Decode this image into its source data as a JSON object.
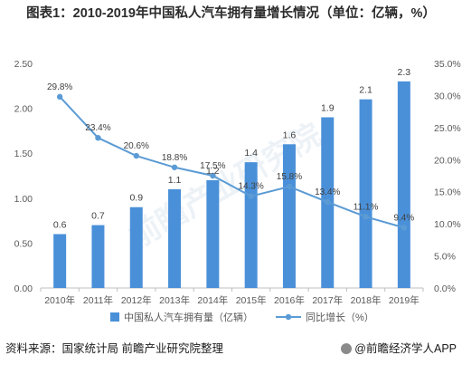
{
  "page": {
    "title": "图表1：2010-2019年中国私人汽车拥有量增长情况（单位：亿辆，%）",
    "source": "资料来源：国家统计局 前瞻产业研究院整理",
    "credit": "@前瞻经济学人APP",
    "watermark": "前瞻产业研究院"
  },
  "chart_data": {
    "type": "bar",
    "categories": [
      "2010年",
      "2011年",
      "2012年",
      "2013年",
      "2014年",
      "2015年",
      "2016年",
      "2017年",
      "2018年",
      "2019年"
    ],
    "series": [
      {
        "name": "中国私人汽车拥有量（亿辆）",
        "type": "bar",
        "axis": "left",
        "color": "#4a90d9",
        "values": [
          0.6,
          0.7,
          0.9,
          1.1,
          1.2,
          1.4,
          1.6,
          1.9,
          2.1,
          2.3
        ],
        "value_labels": [
          "0.6",
          "0.7",
          "0.9",
          "1.1",
          "1.2",
          "1.4",
          "1.6",
          "1.9",
          "2.1",
          "2.3"
        ]
      },
      {
        "name": "同比增长（%）",
        "type": "line",
        "axis": "right",
        "color": "#5b9bd5",
        "values": [
          29.8,
          23.4,
          20.6,
          18.8,
          17.5,
          14.3,
          15.8,
          13.4,
          11.1,
          9.4
        ],
        "value_labels": [
          "29.8%",
          "23.4%",
          "20.6%",
          "18.8%",
          "17.5%",
          "14.3%",
          "15.8%",
          "13.4%",
          "11.1%",
          "9.4%"
        ]
      }
    ],
    "left_axis": {
      "ylim": [
        0,
        2.5
      ],
      "ticks": [
        0,
        0.5,
        1.0,
        1.5,
        2.0,
        2.5
      ],
      "tick_labels": [
        "0.00",
        "0.50",
        "1.00",
        "1.50",
        "2.00",
        "2.50"
      ]
    },
    "right_axis": {
      "ylim": [
        0,
        35
      ],
      "ticks": [
        0,
        5,
        10,
        15,
        20,
        25,
        30,
        35
      ],
      "tick_labels": [
        "0.0%",
        "5.0%",
        "10.0%",
        "15.0%",
        "20.0%",
        "25.0%",
        "30.0%",
        "35.0%"
      ]
    },
    "grid": false,
    "legend": "bottom",
    "colors": {
      "bar": "#4a90d9",
      "line": "#5b9bd5",
      "axis_text": "#595959",
      "label_text": "#404040"
    }
  }
}
